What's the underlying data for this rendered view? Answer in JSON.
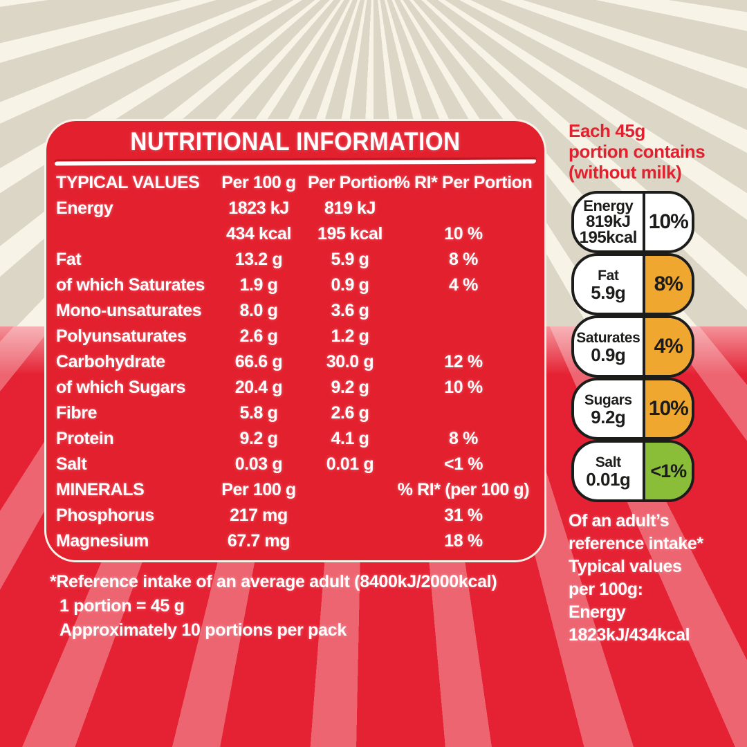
{
  "panel": {
    "title": "NUTRITIONAL INFORMATION",
    "table": {
      "rows": [
        [
          "TYPICAL VALUES",
          "Per 100 g",
          "Per Portion",
          "% RI* Per Portion"
        ],
        [
          "Energy",
          "1823 kJ",
          "819 kJ",
          ""
        ],
        [
          "",
          "434 kcal",
          "195 kcal",
          "10 %"
        ],
        [
          "Fat",
          "13.2 g",
          "5.9 g",
          "8 %"
        ],
        [
          "of which Saturates",
          "1.9 g",
          "0.9 g",
          "4 %"
        ],
        [
          "Mono-unsaturates",
          "8.0 g",
          "3.6 g",
          ""
        ],
        [
          "Polyunsaturates",
          "2.6 g",
          "1.2 g",
          ""
        ],
        [
          "Carbohydrate",
          "66.6 g",
          "30.0 g",
          "12 %"
        ],
        [
          "of which Sugars",
          "20.4 g",
          "9.2 g",
          "10 %"
        ],
        [
          "Fibre",
          "5.8 g",
          "2.6 g",
          ""
        ],
        [
          "Protein",
          "9.2 g",
          "4.1 g",
          "8 %"
        ],
        [
          "Salt",
          "0.03 g",
          "0.01 g",
          "<1 %"
        ],
        [
          "MINERALS",
          "Per 100 g",
          "",
          "% RI* (per 100 g)"
        ],
        [
          "Phosphorus",
          "217 mg",
          "",
          "31 %"
        ],
        [
          "Magnesium",
          "67.7 mg",
          "",
          "18 %"
        ]
      ]
    },
    "footnotes": [
      "*Reference intake of an average adult (8400kJ/2000kcal)",
      "1 portion = 45 g",
      "Approximately 10 portions per pack"
    ]
  },
  "side": {
    "heading_lines": [
      "Each 45g",
      "portion contains",
      "(without milk)"
    ],
    "badges": [
      {
        "label": "Energy",
        "values": [
          "819kJ",
          "195kcal"
        ],
        "ri": "10%",
        "ri_bg": "#ffffff"
      },
      {
        "label": "Fat",
        "values": [
          "5.9g"
        ],
        "ri": "8%",
        "ri_bg": "#f0a72f"
      },
      {
        "label": "Saturates",
        "values": [
          "0.9g"
        ],
        "ri": "4%",
        "ri_bg": "#f0a72f"
      },
      {
        "label": "Sugars",
        "values": [
          "9.2g"
        ],
        "ri": "10%",
        "ri_bg": "#f0a72f"
      },
      {
        "label": "Salt",
        "values": [
          "0.01g"
        ],
        "ri": "<1%",
        "ri_bg": "#8abd38"
      }
    ],
    "footer_lines": [
      "Of an adult’s",
      "reference intake*",
      "Typical values",
      "per 100g:",
      "Energy",
      "1823kJ/434kcal"
    ]
  },
  "colors": {
    "panel_red": "#e3202e",
    "background_cream": "#dcd6c6",
    "background_red": "#e52234",
    "traffic_orange": "#f0a72f",
    "traffic_green": "#8abd38",
    "badge_outline": "#1c1c1a",
    "text_white": "#ffffff"
  }
}
